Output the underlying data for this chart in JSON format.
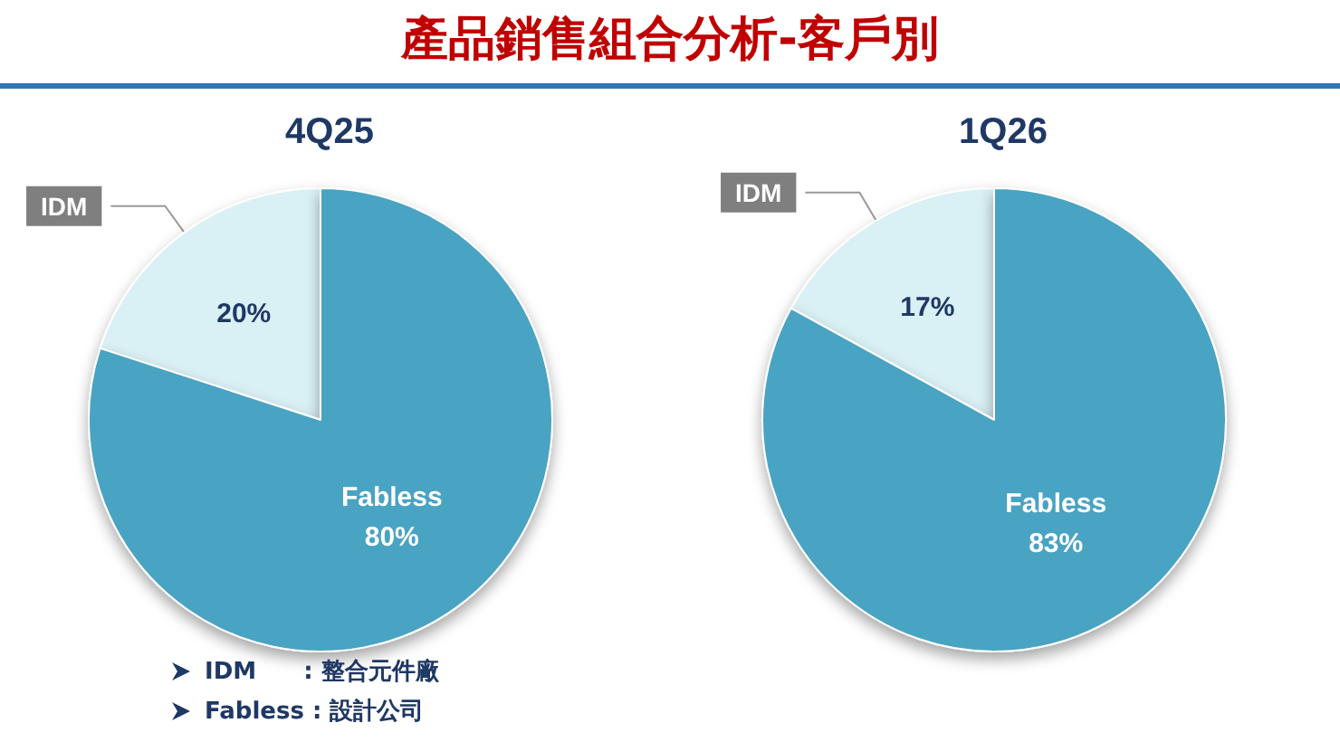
{
  "chart_data": [
    {
      "type": "pie",
      "title": "4Q25",
      "categories": [
        "IDM",
        "Fabless"
      ],
      "values": [
        20,
        80
      ],
      "value_labels": [
        "20%",
        "80%"
      ],
      "colors": [
        "#d9f0f5",
        "#4aa3c2"
      ]
    },
    {
      "type": "pie",
      "title": "1Q26",
      "categories": [
        "IDM",
        "Fabless"
      ],
      "values": [
        17,
        83
      ],
      "value_labels": [
        "17%",
        "83%"
      ],
      "colors": [
        "#d9f0f5",
        "#4aa3c2"
      ]
    },
    {
      "type": "other",
      "title": "產品銷售組合分析-客戶別",
      "annotations": [
        "IDM　　: 整合元件廠",
        "Fabless : 設計公司"
      ]
    }
  ]
}
